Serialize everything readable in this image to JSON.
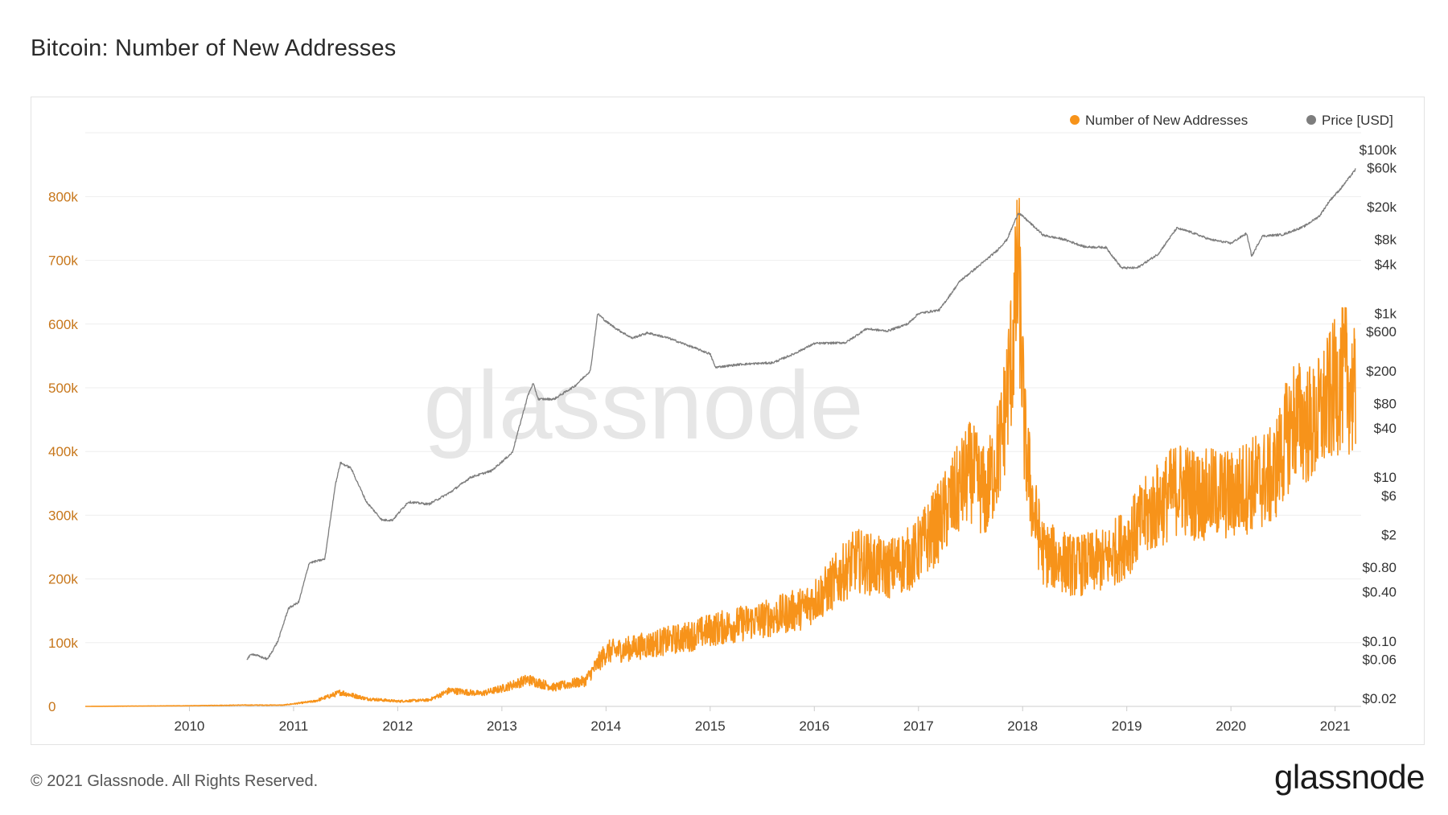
{
  "page": {
    "title": "Bitcoin: Number of New Addresses",
    "footer": "© 2021 Glassnode. All Rights Reserved.",
    "brand": "glassnode",
    "watermark": "glassnode"
  },
  "colors": {
    "addresses": "#f7931a",
    "addresses_axis": "#c7761a",
    "price": "#7d7d7d",
    "grid": "#eeeeee",
    "watermark": "#e6e6e6"
  },
  "chart_data": {
    "type": "line",
    "title": "Bitcoin: Number of New Addresses",
    "legend": [
      {
        "name": "Number of New Addresses",
        "color": "#f7931a"
      },
      {
        "name": "Price [USD]",
        "color": "#7d7d7d"
      }
    ],
    "legend_position": "top-right",
    "x_range": [
      2009.0,
      2021.25
    ],
    "x_ticks": [
      "2010",
      "2011",
      "2012",
      "2013",
      "2014",
      "2015",
      "2016",
      "2017",
      "2018",
      "2019",
      "2020",
      "2021"
    ],
    "y_left": {
      "label": "Number of New Addresses",
      "range": [
        0,
        900000
      ],
      "ticks": [
        0,
        100000,
        200000,
        300000,
        400000,
        500000,
        600000,
        700000,
        800000
      ],
      "tick_labels": [
        "0",
        "100k",
        "200k",
        "300k",
        "400k",
        "500k",
        "600k",
        "700k",
        "800k"
      ]
    },
    "y_right": {
      "label": "Price [USD]",
      "scale": "log",
      "range": [
        0.015,
        200000
      ],
      "ticks": [
        0.02,
        0.06,
        0.1,
        0.4,
        0.8,
        2,
        6,
        10,
        40,
        80,
        200,
        600,
        1000,
        4000,
        8000,
        20000,
        60000,
        100000
      ],
      "tick_labels": [
        "$0.02",
        "$0.06",
        "$0.10",
        "$0.40",
        "$0.80",
        "$2",
        "$6",
        "$10",
        "$40",
        "$80",
        "$200",
        "$600",
        "$1k",
        "$4k",
        "$8k",
        "$20k",
        "$60k",
        "$100k"
      ]
    },
    "series": [
      {
        "name": "Number of New Addresses",
        "axis": "left",
        "x": [
          2009.0,
          2010.0,
          2010.5,
          2010.9,
          2011.2,
          2011.45,
          2011.7,
          2012.0,
          2012.3,
          2012.5,
          2012.8,
          2013.0,
          2013.25,
          2013.5,
          2013.8,
          2014.0,
          2014.2,
          2014.5,
          2014.8,
          2015.0,
          2015.3,
          2015.6,
          2015.9,
          2016.1,
          2016.4,
          2016.7,
          2016.95,
          2017.2,
          2017.35,
          2017.5,
          2017.65,
          2017.8,
          2017.9,
          2017.96,
          2018.02,
          2018.1,
          2018.2,
          2018.5,
          2018.8,
          2019.0,
          2019.2,
          2019.5,
          2019.7,
          2019.9,
          2020.0,
          2020.2,
          2020.4,
          2020.6,
          2020.8,
          2021.0,
          2021.1,
          2021.2
        ],
        "values": [
          0,
          1000,
          2000,
          2000,
          8000,
          22000,
          12000,
          8000,
          10000,
          25000,
          20000,
          28000,
          42000,
          30000,
          40000,
          85000,
          90000,
          100000,
          110000,
          120000,
          130000,
          140000,
          155000,
          180000,
          230000,
          215000,
          235000,
          290000,
          330000,
          370000,
          330000,
          420000,
          560000,
          690000,
          420000,
          310000,
          240000,
          220000,
          230000,
          260000,
          300000,
          345000,
          330000,
          335000,
          330000,
          350000,
          360000,
          450000,
          440000,
          500000,
          520000,
          480000
        ]
      },
      {
        "name": "Price [USD]",
        "axis": "right",
        "x": [
          2010.55,
          2010.6,
          2010.75,
          2010.85,
          2010.95,
          2011.05,
          2011.15,
          2011.3,
          2011.4,
          2011.45,
          2011.55,
          2011.7,
          2011.85,
          2011.95,
          2012.1,
          2012.3,
          2012.5,
          2012.7,
          2012.9,
          2013.1,
          2013.25,
          2013.3,
          2013.35,
          2013.5,
          2013.7,
          2013.85,
          2013.92,
          2014.0,
          2014.1,
          2014.25,
          2014.4,
          2014.6,
          2014.85,
          2015.0,
          2015.05,
          2015.3,
          2015.6,
          2015.8,
          2016.0,
          2016.3,
          2016.5,
          2016.7,
          2016.9,
          2017.0,
          2017.2,
          2017.4,
          2017.6,
          2017.75,
          2017.85,
          2017.96,
          2018.05,
          2018.2,
          2018.4,
          2018.6,
          2018.8,
          2018.95,
          2019.1,
          2019.3,
          2019.48,
          2019.6,
          2019.8,
          2020.0,
          2020.15,
          2020.2,
          2020.3,
          2020.5,
          2020.7,
          2020.85,
          2020.95,
          2021.05,
          2021.15,
          2021.2
        ],
        "values": [
          0.06,
          0.07,
          0.06,
          0.1,
          0.25,
          0.3,
          0.9,
          1.0,
          8.0,
          15.0,
          13.0,
          5.0,
          3.0,
          3.0,
          5.0,
          4.7,
          6.5,
          10.0,
          12.0,
          20.0,
          100.0,
          140.0,
          90.0,
          90.0,
          130.0,
          200.0,
          1000.0,
          800.0,
          650.0,
          500.0,
          580.0,
          500.0,
          380.0,
          320.0,
          220.0,
          240.0,
          250.0,
          320.0,
          430.0,
          440.0,
          650.0,
          610.0,
          750.0,
          1000.0,
          1100.0,
          2500.0,
          4000.0,
          5800.0,
          8000.0,
          17000.0,
          13500.0,
          9000.0,
          8000.0,
          6500.0,
          6400.0,
          3600.0,
          3600.0,
          5300.0,
          11000.0,
          10000.0,
          8000.0,
          7200.0,
          9500.0,
          5000.0,
          8800.0,
          9200.0,
          11500.0,
          15500.0,
          24000.0,
          33000.0,
          48000.0,
          58000.0
        ]
      }
    ]
  }
}
